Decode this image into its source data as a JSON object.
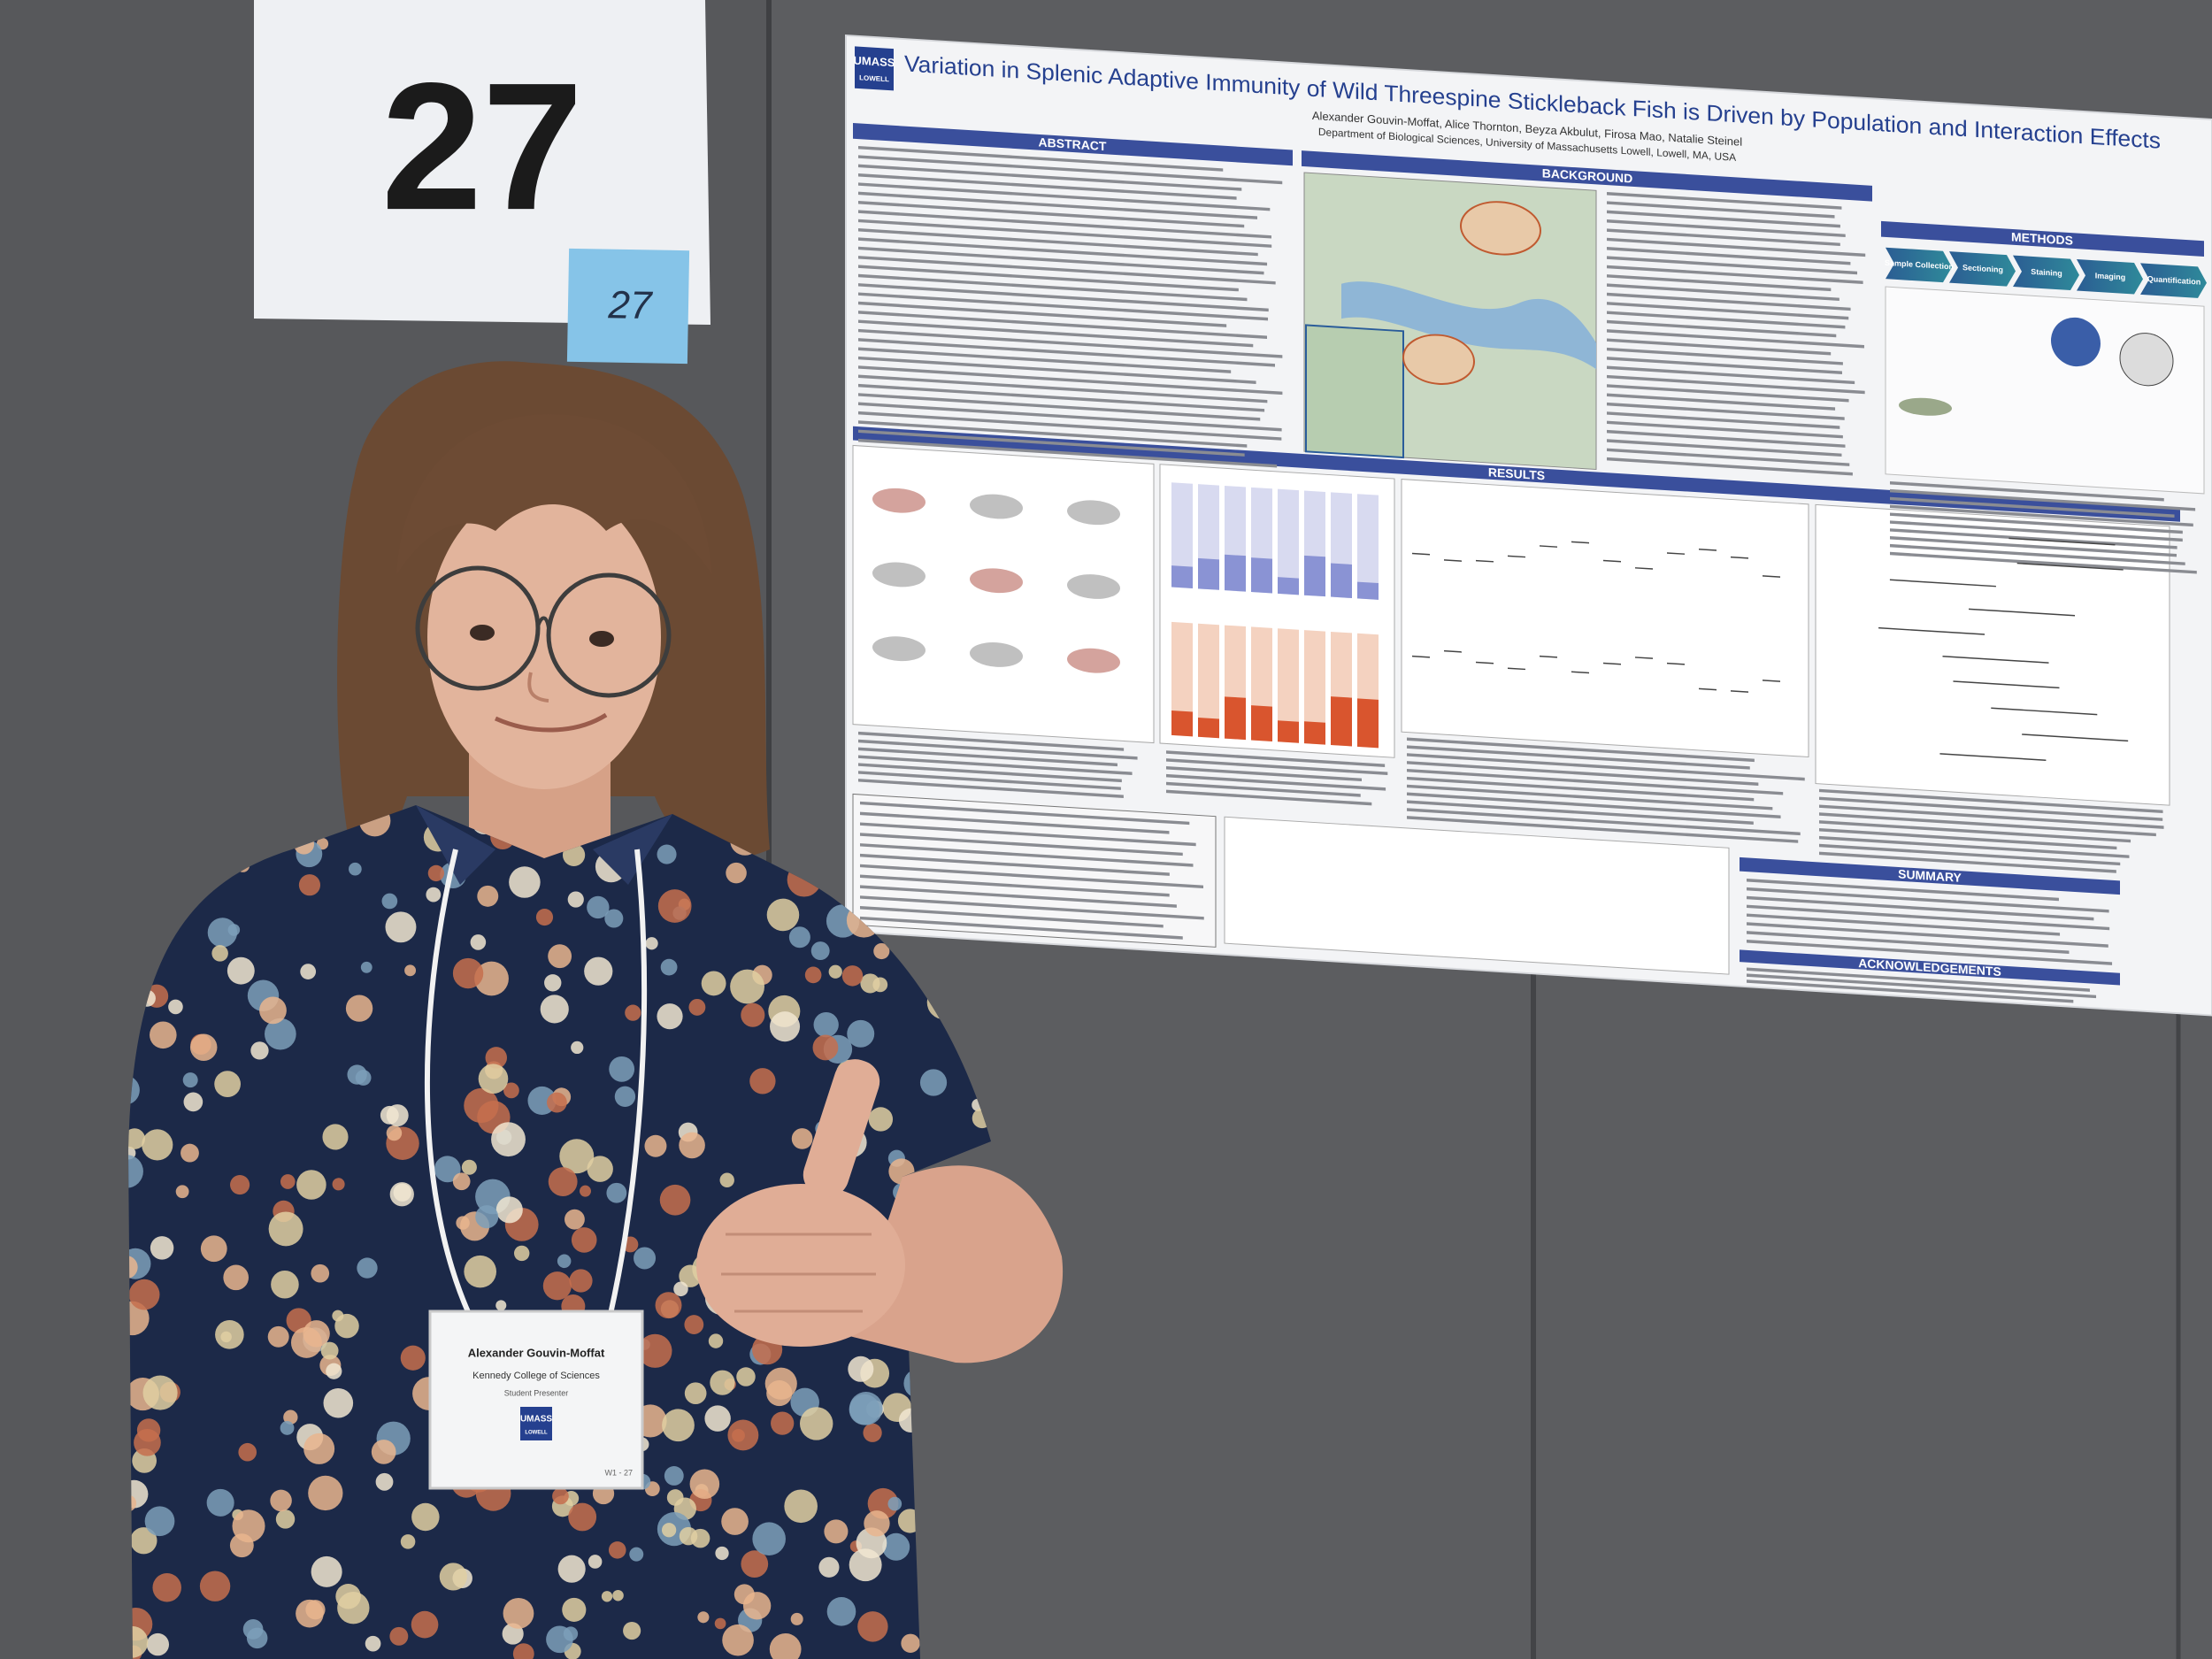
{
  "sign": {
    "number": "27",
    "sticky_note": "27"
  },
  "poster": {
    "logo_top": "UMASS",
    "logo_bottom": "LOWELL",
    "title": "Variation in Splenic Adaptive Immunity of Wild Threespine Stickleback Fish is Driven by Population and Interaction Effects",
    "authors": "Alexander Gouvin-Moffat, Alice Thornton, Beyza Akbulut, Firosa Mao, Natalie Steinel",
    "affiliation": "Department of Biological Sciences, University of Massachusetts Lowell, Lowell, MA, USA",
    "sections": [
      "ABSTRACT",
      "BACKGROUND",
      "METHODS",
      "RESULTS",
      "SUMMARY",
      "ACKNOWLEDGEMENTS"
    ],
    "methods_steps": [
      "Sample Collection",
      "Sectioning",
      "Staining",
      "Imaging",
      "Quantification"
    ]
  },
  "badge": {
    "name": "Alexander Gouvin-Moffat",
    "college": "Kennedy College of Sciences",
    "role": "Student Presenter",
    "logo_top": "UMASS",
    "logo_bottom": "LOWELL",
    "code": "W1 - 27"
  }
}
